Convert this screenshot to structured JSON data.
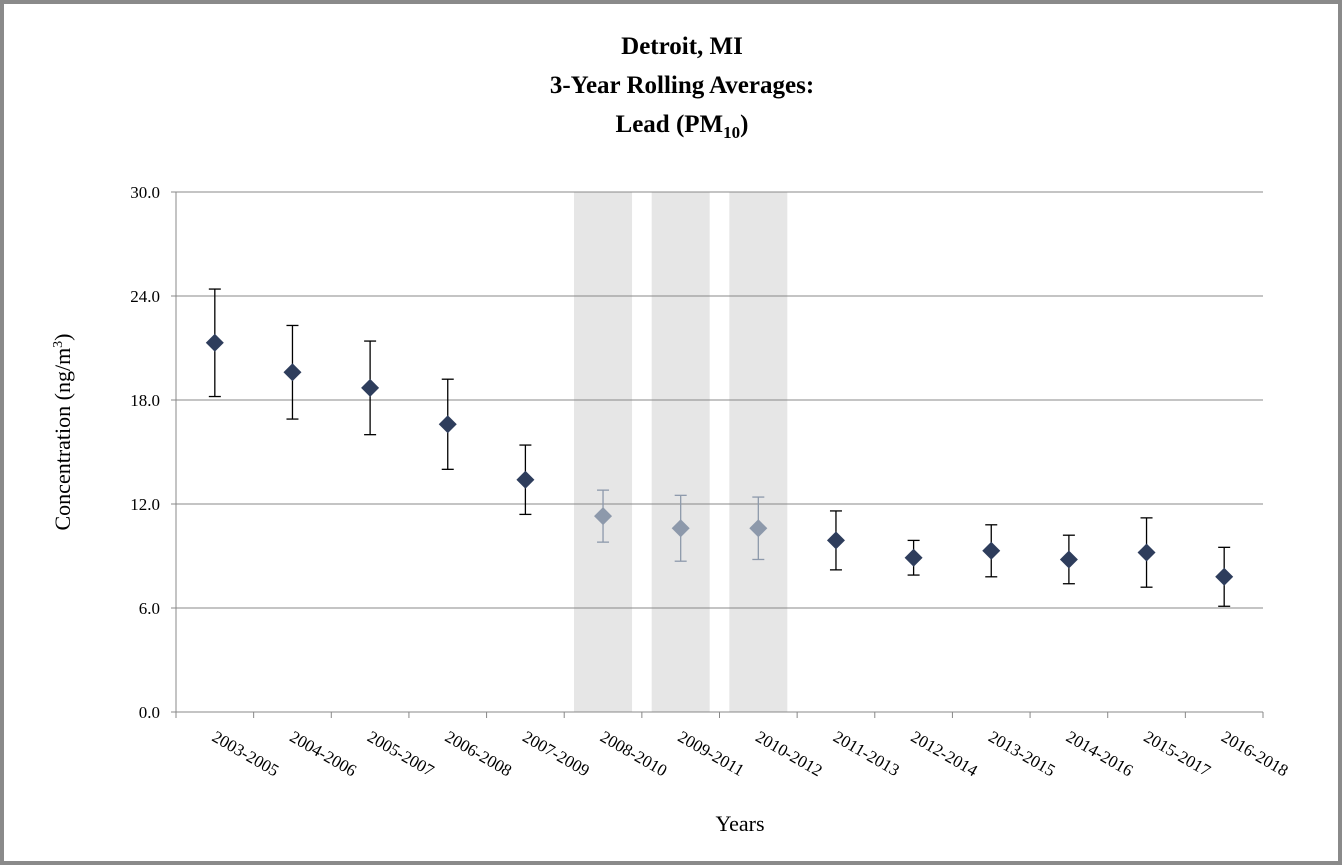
{
  "chart_data": {
    "type": "errorbar-scatter",
    "title": [
      "Detroit, MI",
      "3-Year Rolling Averages:",
      {
        "text": "Lead (PM",
        "subscript": "10",
        "end": ")"
      }
    ],
    "xlabel": "Years",
    "ylabel": {
      "text": "Concentration (ng/m",
      "superscript": "3",
      "end": ")"
    },
    "categories": [
      "2003-2005",
      "2004-2006",
      "2005-2007",
      "2006-2008",
      "2007-2009",
      "2008-2010",
      "2009-2011",
      "2010-2012",
      "2011-2013",
      "2012-2014",
      "2013-2015",
      "2014-2016",
      "2015-2017",
      "2016-2018"
    ],
    "values": [
      21.3,
      19.6,
      18.7,
      16.6,
      13.4,
      11.3,
      10.6,
      10.6,
      9.9,
      8.9,
      9.3,
      8.8,
      9.2,
      7.8
    ],
    "errors": [
      3.1,
      2.7,
      2.7,
      2.6,
      2.0,
      1.5,
      1.9,
      1.8,
      1.7,
      1.0,
      1.5,
      1.4,
      2.0,
      1.7
    ],
    "color": "#2e3d5c",
    "shaded_color": "#8d99ab",
    "shade_fill": "#e6e6e6",
    "shaded_categories": [
      "2008-2010",
      "2009-2011",
      "2010-2012"
    ],
    "ylim": [
      0,
      30
    ],
    "yticks": [
      {
        "value": 0,
        "label": "0.0"
      },
      {
        "value": 6,
        "label": "6.0"
      },
      {
        "value": 12,
        "label": "12.0"
      },
      {
        "value": 18,
        "label": "18.0"
      },
      {
        "value": 24,
        "label": "24.0"
      },
      {
        "value": 30,
        "label": "30.0"
      }
    ],
    "grid": true
  }
}
